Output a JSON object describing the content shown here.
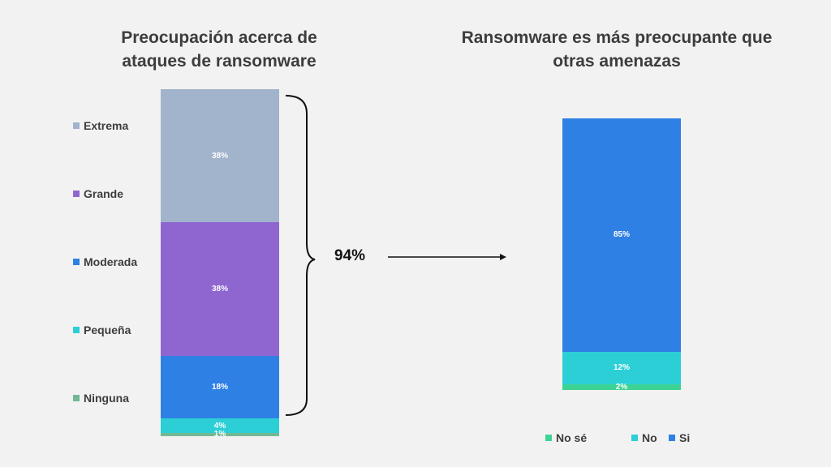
{
  "chart_data": [
    {
      "type": "bar",
      "stacked": true,
      "title": "Preocupación acerca de ataques de ransomware",
      "categories": [
        "Extrema",
        "Grande",
        "Moderada",
        "Pequeña",
        "Ninguna"
      ],
      "values": [
        38,
        38,
        18,
        4,
        1
      ],
      "labels": [
        "38%",
        "38%",
        "18%",
        "4%",
        "1%"
      ],
      "colors": [
        "#a2b3cc",
        "#8f66d0",
        "#2f80e4",
        "#2ccfd6",
        "#72b894"
      ],
      "legend_position": "left",
      "bracket_total": "94%"
    },
    {
      "type": "bar",
      "stacked": true,
      "title": "Ransomware es más preocupante que otras amenazas",
      "categories": [
        "Si",
        "No",
        "No sé"
      ],
      "values": [
        85,
        12,
        2
      ],
      "labels": [
        "85%",
        "12%",
        "2%"
      ],
      "colors": [
        "#2f80e4",
        "#2ccfd6",
        "#3dd394"
      ],
      "legend_order": [
        "No sé",
        "No",
        "Si"
      ],
      "legend_position": "bottom"
    }
  ]
}
